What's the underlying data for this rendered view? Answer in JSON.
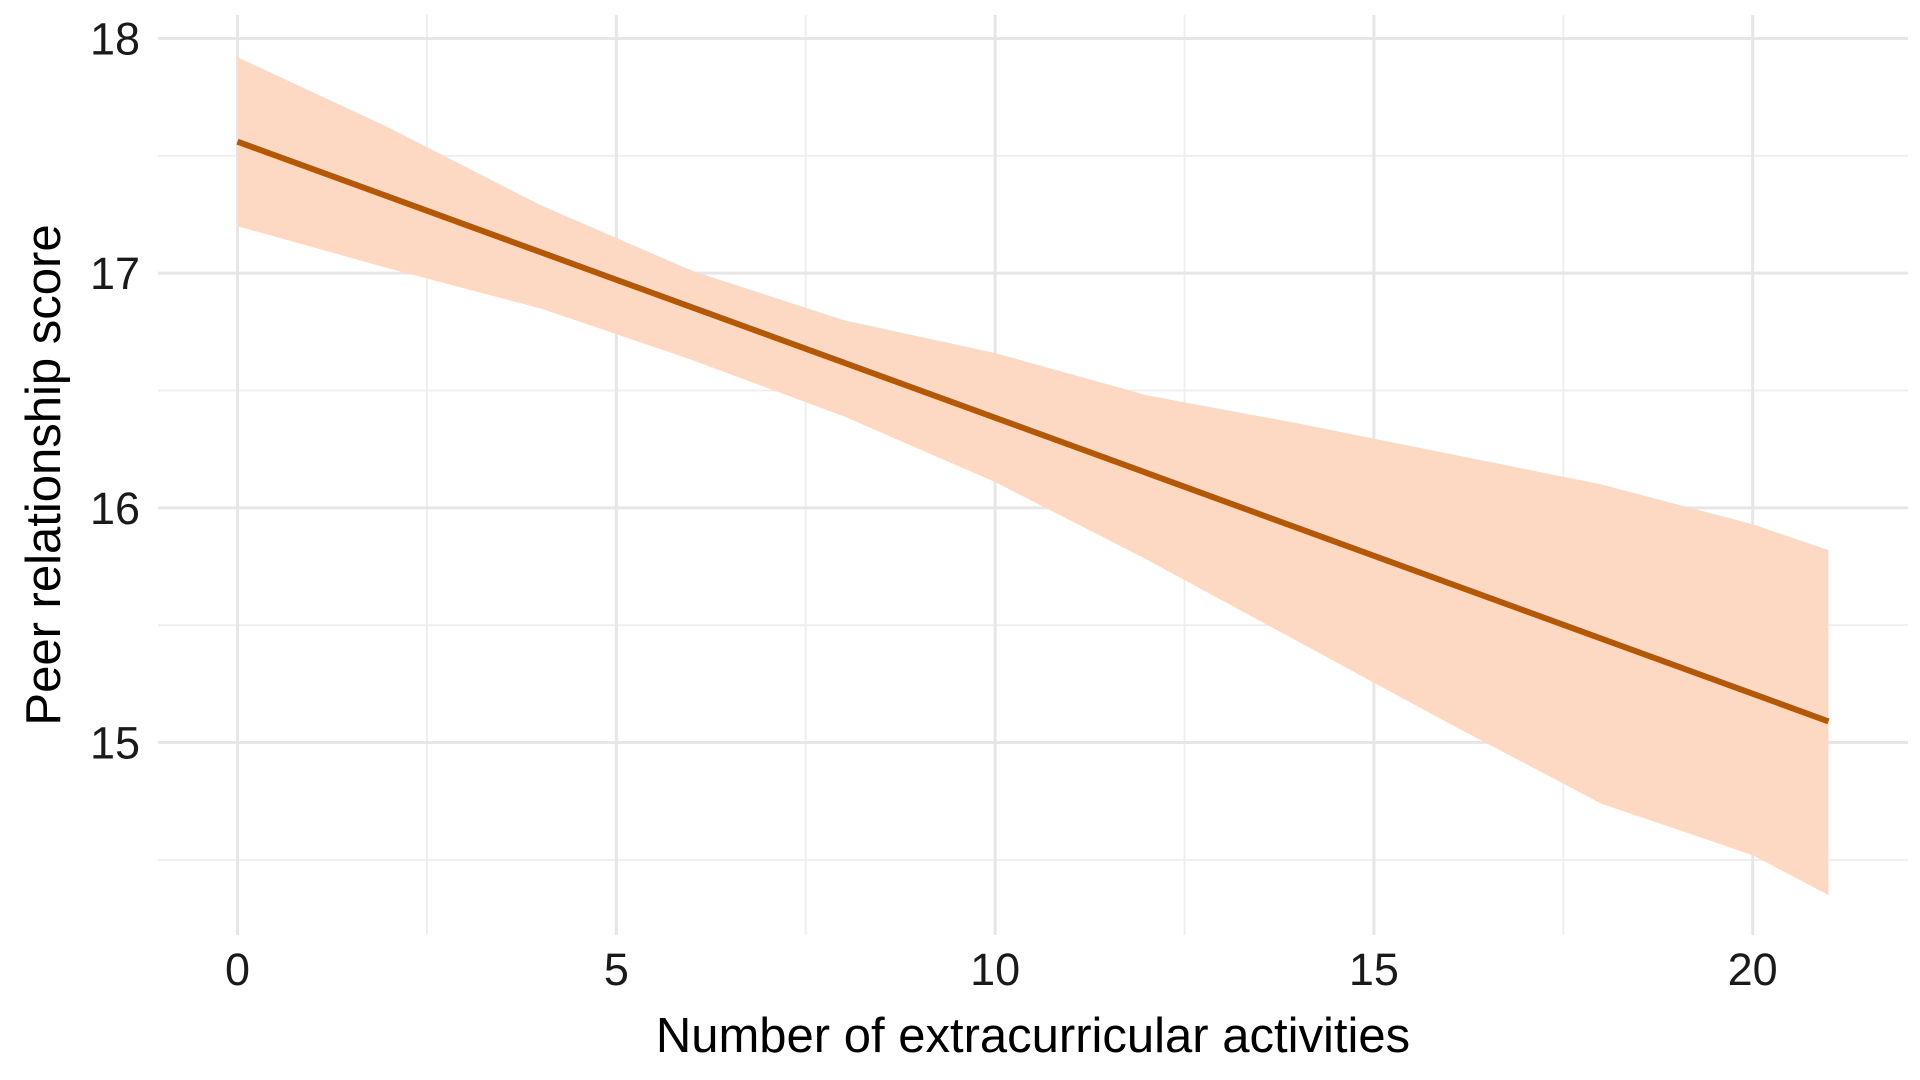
{
  "chart_data": {
    "type": "line",
    "title": "",
    "xlabel": "Number of extracurricular activities",
    "ylabel": "Peer relationship score",
    "xlim": [
      -1.05,
      22.05
    ],
    "ylim": [
      14.18,
      18.1
    ],
    "x_ticks": [
      0,
      5,
      10,
      15,
      20
    ],
    "x_tick_labels": [
      "0",
      "5",
      "10",
      "15",
      "20"
    ],
    "y_ticks": [
      15,
      16,
      17,
      18
    ],
    "y_tick_labels": [
      "15",
      "16",
      "17",
      "18"
    ],
    "x_minor_ticks": [
      2.5,
      7.5,
      12.5,
      17.5
    ],
    "y_minor_ticks": [
      14.5,
      15.5,
      16.5,
      17.5
    ],
    "grid": true,
    "legend": "none",
    "series": [
      {
        "x": [
          0,
          21
        ],
        "y": [
          17.56,
          15.09
        ],
        "color": "#b35806"
      }
    ],
    "confidence_band": {
      "color": "#fdd9c4",
      "x": [
        0,
        2,
        4,
        6,
        8,
        10,
        12,
        14,
        16,
        18,
        20,
        21
      ],
      "lower": [
        17.2,
        17.02,
        16.85,
        16.63,
        16.39,
        16.11,
        15.78,
        15.43,
        15.08,
        14.74,
        14.52,
        14.35
      ],
      "upper": [
        17.92,
        17.62,
        17.29,
        17.01,
        16.8,
        16.66,
        16.48,
        16.36,
        16.23,
        16.1,
        15.93,
        15.82
      ]
    }
  }
}
